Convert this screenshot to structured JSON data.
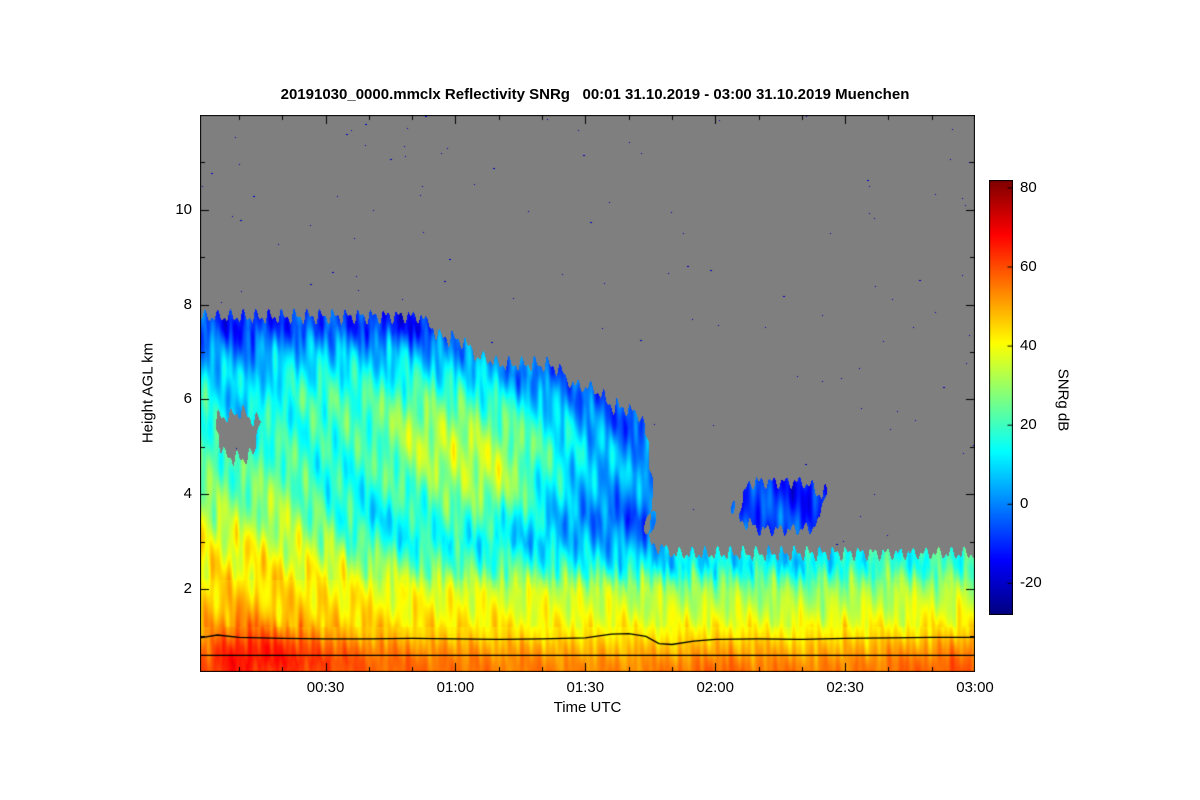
{
  "chart_data": {
    "type": "heatmap",
    "title": "20191030_0000.mmclx Reflectivity SNRg   00:01 31.10.2019 - 03:00 31.10.2019 Muenchen",
    "xlabel": "Time UTC",
    "ylabel": "Height AGL km",
    "station": "Muenchen",
    "time_span": "00:01 31.10.2019 - 03:00 31.10.2019",
    "x_unit": "minutes after 00:00 UTC",
    "x_range_minutes": [
      1,
      180
    ],
    "x_ticks": [
      {
        "minute": 30,
        "label": "00:30"
      },
      {
        "minute": 60,
        "label": "01:00"
      },
      {
        "minute": 90,
        "label": "01:30"
      },
      {
        "minute": 120,
        "label": "02:00"
      },
      {
        "minute": 150,
        "label": "02:30"
      },
      {
        "minute": 180,
        "label": "03:00"
      }
    ],
    "y_range_km": [
      0.25,
      12.0
    ],
    "y_ticks": [
      2,
      4,
      6,
      8,
      10
    ],
    "y_minor_step_km": 1,
    "x_minor_step_min": 10,
    "colorbar": {
      "label": "SNRg dB",
      "vmin": -28,
      "vmax": 82,
      "ticks": [
        80,
        60,
        40,
        20,
        0,
        -20
      ],
      "colormap": "jet"
    },
    "no_data_color": "#7f7f7f",
    "grid": {
      "comment_units": "values_db[time][height] = SNRg in dB, null = no echo (gray)",
      "times_min": [
        0,
        10,
        20,
        30,
        40,
        50,
        60,
        70,
        80,
        90,
        100,
        110,
        120,
        130,
        140,
        150,
        160,
        170,
        180
      ],
      "heights_km": [
        0.25,
        0.5,
        0.75,
        1.0,
        1.25,
        1.5,
        2.0,
        2.5,
        3.0,
        3.5,
        4.0,
        4.5,
        5.0,
        5.5,
        6.0,
        6.5,
        7.0,
        7.5,
        8.0
      ],
      "values_db": [
        [
          60,
          58,
          55,
          50,
          48,
          46,
          44,
          42,
          40,
          35,
          30,
          25,
          22,
          18,
          20,
          12,
          5,
          -5,
          null
        ],
        [
          65,
          68,
          66,
          60,
          55,
          50,
          45,
          42,
          38,
          30,
          25,
          20,
          null,
          null,
          5,
          8,
          0,
          -12,
          null
        ],
        [
          62,
          66,
          64,
          58,
          50,
          47,
          44,
          40,
          36,
          32,
          28,
          25,
          20,
          15,
          18,
          12,
          5,
          -8,
          null
        ],
        [
          60,
          62,
          58,
          52,
          47,
          45,
          42,
          38,
          30,
          22,
          18,
          15,
          18,
          20,
          22,
          15,
          8,
          -5,
          null
        ],
        [
          58,
          58,
          55,
          48,
          45,
          43,
          40,
          30,
          18,
          12,
          15,
          18,
          20,
          22,
          20,
          14,
          6,
          -10,
          null
        ],
        [
          57,
          56,
          52,
          47,
          44,
          42,
          38,
          25,
          15,
          15,
          20,
          28,
          32,
          30,
          25,
          15,
          5,
          -12,
          null
        ],
        [
          56,
          55,
          52,
          46,
          43,
          41,
          37,
          22,
          15,
          22,
          28,
          32,
          35,
          30,
          22,
          12,
          0,
          null,
          null
        ],
        [
          55,
          54,
          50,
          45,
          42,
          40,
          36,
          20,
          12,
          18,
          30,
          35,
          32,
          25,
          15,
          5,
          null,
          null,
          null
        ],
        [
          55,
          53,
          50,
          44,
          41,
          39,
          35,
          18,
          8,
          10,
          15,
          18,
          20,
          15,
          8,
          -5,
          null,
          null,
          null
        ],
        [
          54,
          52,
          48,
          44,
          40,
          38,
          34,
          15,
          5,
          0,
          5,
          8,
          10,
          5,
          -5,
          null,
          null,
          null,
          null
        ],
        [
          54,
          52,
          48,
          43,
          40,
          37,
          33,
          12,
          2,
          -5,
          0,
          5,
          2,
          -8,
          null,
          null,
          null,
          null,
          null
        ],
        [
          55,
          52,
          48,
          43,
          39,
          36,
          30,
          10,
          null,
          null,
          null,
          null,
          null,
          null,
          null,
          null,
          null,
          null,
          null
        ],
        [
          58,
          55,
          50,
          45,
          40,
          36,
          30,
          12,
          null,
          null,
          null,
          null,
          null,
          null,
          null,
          null,
          null,
          null,
          null
        ],
        [
          56,
          53,
          49,
          44,
          39,
          36,
          29,
          12,
          null,
          -5,
          -8,
          null,
          null,
          null,
          null,
          null,
          null,
          null,
          null
        ],
        [
          55,
          52,
          48,
          43,
          39,
          35,
          28,
          10,
          null,
          -8,
          -12,
          null,
          null,
          null,
          null,
          null,
          null,
          null,
          null
        ],
        [
          55,
          53,
          49,
          44,
          40,
          36,
          30,
          15,
          null,
          null,
          null,
          null,
          null,
          null,
          null,
          null,
          null,
          null,
          null
        ],
        [
          56,
          54,
          50,
          45,
          40,
          37,
          31,
          18,
          null,
          null,
          null,
          null,
          null,
          null,
          null,
          null,
          null,
          null,
          null
        ],
        [
          58,
          56,
          52,
          46,
          41,
          38,
          32,
          18,
          null,
          null,
          null,
          null,
          null,
          null,
          null,
          null,
          null,
          null,
          null
        ],
        [
          60,
          58,
          54,
          48,
          42,
          39,
          33,
          20,
          null,
          null,
          null,
          null,
          null,
          null,
          null,
          null,
          null,
          null,
          null
        ]
      ]
    },
    "melting_layer_line": {
      "times_min": [
        1,
        5,
        10,
        20,
        30,
        40,
        50,
        60,
        70,
        80,
        90,
        96,
        100,
        104,
        107,
        110,
        115,
        120,
        130,
        140,
        150,
        160,
        170,
        180
      ],
      "heights_km": [
        0.97,
        1.03,
        0.98,
        0.96,
        0.95,
        0.95,
        0.96,
        0.95,
        0.94,
        0.95,
        0.97,
        1.05,
        1.06,
        1.0,
        0.85,
        0.83,
        0.9,
        0.94,
        0.95,
        0.94,
        0.96,
        0.97,
        0.98,
        0.98
      ]
    },
    "lower_line_km": 0.6
  }
}
